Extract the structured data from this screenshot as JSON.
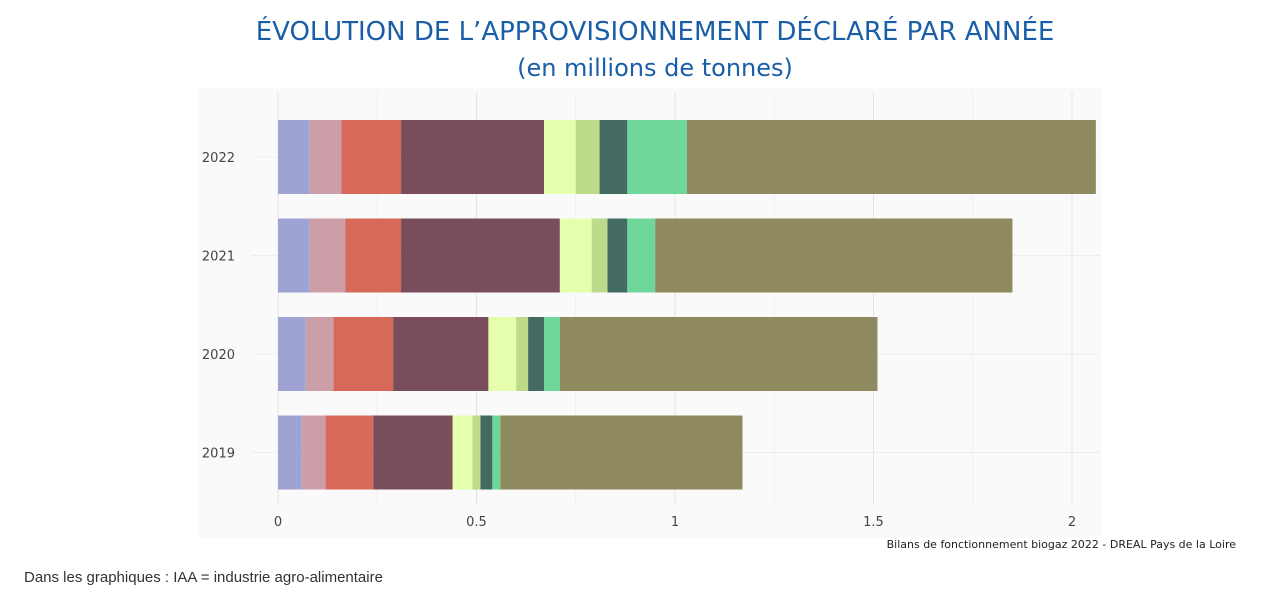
{
  "title": "ÉVOLUTION DE L’APPROVISIONNEMENT DÉCLARÉ PAR ANNÉE",
  "subtitle": "(en millions de tonnes)",
  "source": "Bilans de fonctionnement biogaz 2022 - DREAL Pays de la Loire",
  "note": "Dans les graphiques : IAA = industrie agro-alimentaire",
  "chart_data": {
    "type": "bar",
    "orientation": "horizontal",
    "stacked": true,
    "categories": [
      "2022",
      "2021",
      "2020",
      "2019"
    ],
    "series": [
      {
        "color": "#9ea3d3",
        "values": [
          0.08,
          0.08,
          0.07,
          0.06
        ]
      },
      {
        "color": "#cc9ea8",
        "values": [
          0.08,
          0.09,
          0.07,
          0.06
        ]
      },
      {
        "color": "#d6695a",
        "values": [
          0.15,
          0.14,
          0.15,
          0.12
        ]
      },
      {
        "color": "#7a4d5c",
        "values": [
          0.36,
          0.4,
          0.24,
          0.2
        ]
      },
      {
        "color": "#e6ffad",
        "values": [
          0.08,
          0.08,
          0.07,
          0.05
        ]
      },
      {
        "color": "#bedb8b",
        "values": [
          0.06,
          0.04,
          0.03,
          0.02
        ]
      },
      {
        "color": "#446b62",
        "values": [
          0.07,
          0.05,
          0.04,
          0.03
        ]
      },
      {
        "color": "#70d79b",
        "values": [
          0.15,
          0.07,
          0.04,
          0.02
        ]
      },
      {
        "color": "#8f8a60",
        "values": [
          1.03,
          0.9,
          0.8,
          0.61
        ]
      }
    ],
    "x_ticks": [
      0,
      0.5,
      1,
      1.5,
      2
    ],
    "x_tick_labels": [
      "0",
      "0.5",
      "1",
      "1.5",
      "2"
    ],
    "xlim": [
      0,
      2.06
    ],
    "grid": "vertical",
    "legend": "none"
  }
}
